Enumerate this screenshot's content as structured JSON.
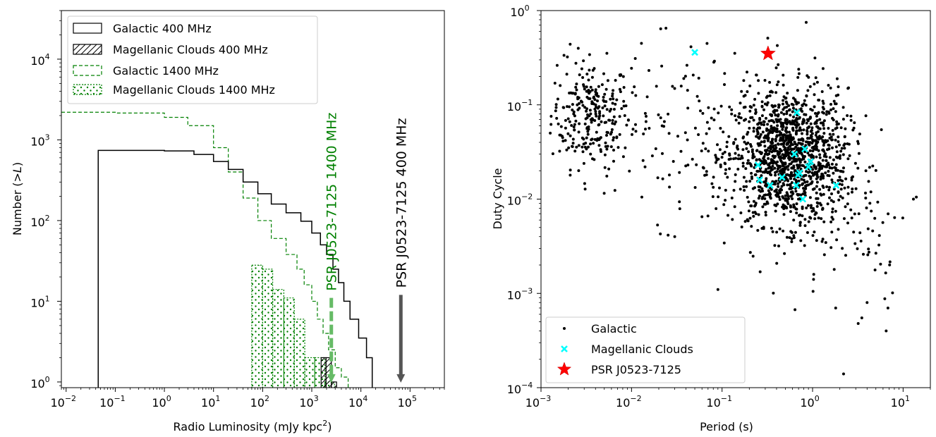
{
  "chart_data": [
    {
      "type": "histogram",
      "xlabel": "Radio Luminosity (mJy kpc²)",
      "xlabel_base": "Radio Luminosity (mJy kpc",
      "xlabel_sup": "2",
      "xlabel_tail": ")",
      "ylabel": "Number (>L)",
      "ylabel_head": "Number (",
      "ylabel_op": ">",
      "ylabel_var": "L",
      "ylabel_tail": ")",
      "xscale": "log",
      "yscale": "log",
      "xlim": [
        0.008,
        500000
      ],
      "ylim": [
        0.85,
        40000
      ],
      "x_ticks": [
        {
          "value": 0.01,
          "base": "10",
          "exp": "−2"
        },
        {
          "value": 0.1,
          "base": "10",
          "exp": "−1"
        },
        {
          "value": 1,
          "base": "10",
          "exp": "0"
        },
        {
          "value": 10,
          "base": "10",
          "exp": "1"
        },
        {
          "value": 100,
          "base": "10",
          "exp": "2"
        },
        {
          "value": 1000,
          "base": "10",
          "exp": "3"
        },
        {
          "value": 10000,
          "base": "10",
          "exp": "4"
        },
        {
          "value": 100000,
          "base": "10",
          "exp": "5"
        }
      ],
      "y_ticks": [
        {
          "value": 1,
          "base": "10",
          "exp": "0"
        },
        {
          "value": 10,
          "base": "10",
          "exp": "1"
        },
        {
          "value": 100,
          "base": "10",
          "exp": "2"
        },
        {
          "value": 1000,
          "base": "10",
          "exp": "3"
        },
        {
          "value": 10000,
          "base": "10",
          "exp": "4"
        }
      ],
      "legend_position": "top-left",
      "series": [
        {
          "name": "Galactic 400 MHz",
          "style": "solid",
          "color": "#000000",
          "points": [
            [
              0.045,
              740
            ],
            [
              1,
              730
            ],
            [
              4,
              660
            ],
            [
              10,
              540
            ],
            [
              20,
              430
            ],
            [
              40,
              300
            ],
            [
              80,
              215
            ],
            [
              150,
              160
            ],
            [
              300,
              125
            ],
            [
              600,
              98
            ],
            [
              1000,
              70
            ],
            [
              1500,
              50
            ],
            [
              2000,
              38
            ],
            [
              2700,
              25
            ],
            [
              3500,
              17
            ],
            [
              4500,
              10
            ],
            [
              6000,
              6
            ],
            [
              9000,
              3.5
            ],
            [
              13000,
              2
            ],
            [
              17000,
              1
            ]
          ]
        },
        {
          "name": "Magellanic Clouds 400 MHz",
          "style": "hatch",
          "color": "#000000",
          "bars": [
            [
              1550,
              1950,
              2
            ],
            [
              1950,
              2500,
              2
            ],
            [
              2500,
              3200,
              1
            ]
          ]
        },
        {
          "name": "Galactic 1400 MHz",
          "style": "dashed",
          "color": "#008000",
          "points": [
            [
              0.008,
              2200
            ],
            [
              0.1,
              2150
            ],
            [
              1,
              1900
            ],
            [
              3,
              1500
            ],
            [
              10,
              800
            ],
            [
              20,
              400
            ],
            [
              40,
              190
            ],
            [
              80,
              100
            ],
            [
              150,
              60
            ],
            [
              300,
              38
            ],
            [
              500,
              25
            ],
            [
              700,
              16
            ],
            [
              1000,
              10
            ],
            [
              1300,
              6
            ],
            [
              1700,
              4
            ],
            [
              2200,
              2.5
            ],
            [
              3000,
              1.5
            ],
            [
              4000,
              1.15
            ],
            [
              5500,
              1
            ]
          ]
        },
        {
          "name": "Magellanic Clouds 1400 MHz",
          "style": "dotted",
          "color": "#008000",
          "bars": [
            [
              60,
              100,
              28
            ],
            [
              100,
              160,
              25
            ],
            [
              160,
              270,
              14
            ],
            [
              270,
              440,
              11
            ],
            [
              440,
              720,
              6
            ],
            [
              720,
              1150,
              2
            ],
            [
              1150,
              1850,
              2
            ],
            [
              1850,
              2900,
              1
            ]
          ]
        }
      ],
      "annotations": [
        {
          "text": "PSR J0523-7125 1400 MHz",
          "x": 2500,
          "color": "#008000",
          "y_from": 11,
          "y_to": 0.98
        },
        {
          "text": "PSR J0523-7125 400 MHz",
          "x": 65000,
          "color": "#000000",
          "y_from": 12,
          "y_to": 0.98
        }
      ]
    },
    {
      "type": "scatter",
      "xlabel": "Period (s)",
      "ylabel": "Duty Cycle",
      "xscale": "log",
      "yscale": "log",
      "xlim": [
        0.001,
        20
      ],
      "ylim": [
        0.0001,
        1
      ],
      "x_ticks": [
        {
          "value": 0.001,
          "base": "10",
          "exp": "−3"
        },
        {
          "value": 0.01,
          "base": "10",
          "exp": "−2"
        },
        {
          "value": 0.1,
          "base": "10",
          "exp": "−1"
        },
        {
          "value": 1,
          "base": "10",
          "exp": "0"
        },
        {
          "value": 10,
          "base": "10",
          "exp": "1"
        }
      ],
      "y_ticks": [
        {
          "value": 0.0001,
          "base": "10",
          "exp": "−4"
        },
        {
          "value": 0.001,
          "base": "10",
          "exp": "−3"
        },
        {
          "value": 0.01,
          "base": "10",
          "exp": "−2"
        },
        {
          "value": 0.1,
          "base": "10",
          "exp": "−1"
        },
        {
          "value": 1,
          "base": "10",
          "exp": "0"
        }
      ],
      "legend_position": "bottom-left",
      "series": [
        {
          "name": "Galactic",
          "marker": "dot",
          "color": "#000000",
          "clusters": [
            {
              "logx_center": -2.45,
              "logy_center": -1.1,
              "logx_sd": 0.22,
              "logy_sd": 0.28,
              "count": 260
            },
            {
              "logx_center": -0.25,
              "logy_center": -1.55,
              "logx_sd": 0.32,
              "logy_sd": 0.36,
              "count": 1300
            },
            {
              "logx_center": -1.4,
              "logy_center": -1.3,
              "logx_sd": 0.55,
              "logy_sd": 0.45,
              "count": 140
            },
            {
              "logx_center": 0.4,
              "logy_center": -2.3,
              "logx_sd": 0.35,
              "logy_sd": 0.4,
              "count": 70
            }
          ],
          "points": [
            [
              0.021,
              0.64
            ],
            [
              0.024,
              0.65
            ],
            [
              0.32,
              0.51
            ],
            [
              0.85,
              0.75
            ],
            [
              0.011,
              0.31
            ],
            [
              0.0021,
              0.44
            ],
            [
              0.09,
              0.0011
            ],
            [
              2.2,
              0.00014
            ],
            [
              3.5,
              0.00055
            ],
            [
              6.5,
              0.0004
            ],
            [
              13,
              0.01
            ],
            [
              14,
              0.0105
            ],
            [
              1.8,
              0.0007
            ],
            [
              4,
              0.0008
            ],
            [
              6.8,
              0.0007
            ],
            [
              0.013,
              0.0105
            ],
            [
              0.03,
              0.004
            ],
            [
              0.06,
              0.0065
            ]
          ]
        },
        {
          "name": "Magellanic Clouds",
          "marker": "x",
          "color": "#00ffff",
          "points": [
            [
              0.05,
              0.36
            ],
            [
              0.67,
              0.083
            ],
            [
              0.25,
              0.023
            ],
            [
              0.26,
              0.016
            ],
            [
              0.34,
              0.014
            ],
            [
              0.46,
              0.017
            ],
            [
              0.63,
              0.03
            ],
            [
              0.66,
              0.014
            ],
            [
              0.69,
              0.018
            ],
            [
              0.72,
              0.019
            ],
            [
              0.78,
              0.01
            ],
            [
              0.82,
              0.034
            ],
            [
              0.9,
              0.022
            ],
            [
              0.95,
              0.025
            ],
            [
              1.82,
              0.014
            ]
          ]
        },
        {
          "name": "PSR J0523-7125",
          "marker": "star",
          "color": "#ff0000",
          "points": [
            [
              0.322,
              0.35
            ]
          ]
        }
      ]
    }
  ]
}
